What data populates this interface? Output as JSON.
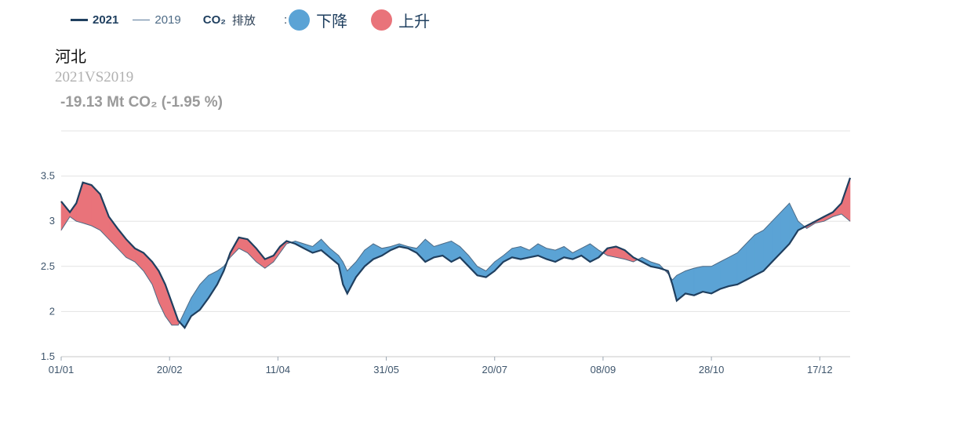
{
  "legend": {
    "line_2021": "2021",
    "line_2019": "2019",
    "co2": "CO₂",
    "emission": "排放",
    "colon": ":",
    "decrease": "下降",
    "increase": "上升"
  },
  "header": {
    "region": "河北",
    "comparison": "2021VS2019",
    "delta": "-19.13 Mt CO₂ (-1.95 %)"
  },
  "colors": {
    "line_2021": "#1f3f5f",
    "line_2019": "#4e6b86",
    "decrease": "#5ba3d5",
    "increase": "#e9737a",
    "grid": "#e3e3e3"
  },
  "chart_data": {
    "type": "area",
    "x_ticks": [
      "01/01",
      "20/02",
      "11/04",
      "31/05",
      "20/07",
      "08/09",
      "28/10",
      "17/12"
    ],
    "x_tick_days": [
      0,
      50,
      100,
      150,
      200,
      250,
      300,
      350
    ],
    "y_ticks": [
      "1.5",
      "2",
      "2.5",
      "3",
      "3.5"
    ],
    "ylim": [
      1.5,
      4.0
    ],
    "xlim": [
      0,
      364
    ],
    "grid": true,
    "series": [
      {
        "name": "2021",
        "points": [
          [
            0,
            3.22
          ],
          [
            4,
            3.1
          ],
          [
            7,
            3.2
          ],
          [
            10,
            3.43
          ],
          [
            14,
            3.4
          ],
          [
            18,
            3.3
          ],
          [
            22,
            3.05
          ],
          [
            26,
            2.92
          ],
          [
            30,
            2.8
          ],
          [
            34,
            2.7
          ],
          [
            38,
            2.65
          ],
          [
            42,
            2.55
          ],
          [
            45,
            2.45
          ],
          [
            48,
            2.3
          ],
          [
            51,
            2.1
          ],
          [
            54,
            1.9
          ],
          [
            57,
            1.82
          ],
          [
            60,
            1.95
          ],
          [
            64,
            2.02
          ],
          [
            68,
            2.15
          ],
          [
            72,
            2.3
          ],
          [
            75,
            2.45
          ],
          [
            78,
            2.65
          ],
          [
            82,
            2.82
          ],
          [
            86,
            2.8
          ],
          [
            90,
            2.7
          ],
          [
            94,
            2.58
          ],
          [
            98,
            2.62
          ],
          [
            101,
            2.72
          ],
          [
            104,
            2.78
          ],
          [
            108,
            2.75
          ],
          [
            112,
            2.7
          ],
          [
            116,
            2.65
          ],
          [
            120,
            2.68
          ],
          [
            124,
            2.6
          ],
          [
            128,
            2.52
          ],
          [
            130,
            2.3
          ],
          [
            132,
            2.2
          ],
          [
            136,
            2.38
          ],
          [
            140,
            2.5
          ],
          [
            144,
            2.58
          ],
          [
            148,
            2.62
          ],
          [
            152,
            2.68
          ],
          [
            156,
            2.72
          ],
          [
            160,
            2.7
          ],
          [
            164,
            2.65
          ],
          [
            168,
            2.55
          ],
          [
            172,
            2.6
          ],
          [
            176,
            2.62
          ],
          [
            180,
            2.55
          ],
          [
            184,
            2.6
          ],
          [
            188,
            2.5
          ],
          [
            192,
            2.4
          ],
          [
            196,
            2.38
          ],
          [
            200,
            2.45
          ],
          [
            204,
            2.55
          ],
          [
            208,
            2.6
          ],
          [
            212,
            2.58
          ],
          [
            216,
            2.6
          ],
          [
            220,
            2.62
          ],
          [
            224,
            2.58
          ],
          [
            228,
            2.55
          ],
          [
            232,
            2.6
          ],
          [
            236,
            2.58
          ],
          [
            240,
            2.62
          ],
          [
            244,
            2.55
          ],
          [
            248,
            2.6
          ],
          [
            252,
            2.7
          ],
          [
            256,
            2.72
          ],
          [
            260,
            2.68
          ],
          [
            264,
            2.6
          ],
          [
            268,
            2.55
          ],
          [
            272,
            2.5
          ],
          [
            276,
            2.48
          ],
          [
            280,
            2.45
          ],
          [
            282,
            2.3
          ],
          [
            284,
            2.12
          ],
          [
            288,
            2.2
          ],
          [
            292,
            2.18
          ],
          [
            296,
            2.22
          ],
          [
            300,
            2.2
          ],
          [
            304,
            2.25
          ],
          [
            308,
            2.28
          ],
          [
            312,
            2.3
          ],
          [
            316,
            2.35
          ],
          [
            320,
            2.4
          ],
          [
            324,
            2.45
          ],
          [
            328,
            2.55
          ],
          [
            332,
            2.65
          ],
          [
            336,
            2.75
          ],
          [
            340,
            2.9
          ],
          [
            344,
            2.95
          ],
          [
            348,
            3.0
          ],
          [
            352,
            3.05
          ],
          [
            356,
            3.1
          ],
          [
            360,
            3.2
          ],
          [
            364,
            3.48
          ]
        ]
      },
      {
        "name": "2019",
        "points": [
          [
            0,
            2.9
          ],
          [
            4,
            3.05
          ],
          [
            7,
            3.0
          ],
          [
            10,
            2.98
          ],
          [
            14,
            2.95
          ],
          [
            18,
            2.9
          ],
          [
            22,
            2.8
          ],
          [
            26,
            2.7
          ],
          [
            30,
            2.6
          ],
          [
            34,
            2.55
          ],
          [
            38,
            2.45
          ],
          [
            42,
            2.3
          ],
          [
            45,
            2.1
          ],
          [
            48,
            1.95
          ],
          [
            51,
            1.85
          ],
          [
            54,
            1.85
          ],
          [
            57,
            2.0
          ],
          [
            60,
            2.15
          ],
          [
            64,
            2.3
          ],
          [
            68,
            2.4
          ],
          [
            72,
            2.45
          ],
          [
            75,
            2.5
          ],
          [
            78,
            2.6
          ],
          [
            82,
            2.7
          ],
          [
            86,
            2.65
          ],
          [
            90,
            2.55
          ],
          [
            94,
            2.48
          ],
          [
            98,
            2.55
          ],
          [
            101,
            2.65
          ],
          [
            104,
            2.75
          ],
          [
            108,
            2.78
          ],
          [
            112,
            2.75
          ],
          [
            116,
            2.72
          ],
          [
            120,
            2.8
          ],
          [
            124,
            2.7
          ],
          [
            128,
            2.62
          ],
          [
            130,
            2.55
          ],
          [
            132,
            2.45
          ],
          [
            136,
            2.55
          ],
          [
            140,
            2.68
          ],
          [
            144,
            2.75
          ],
          [
            148,
            2.7
          ],
          [
            152,
            2.72
          ],
          [
            156,
            2.75
          ],
          [
            160,
            2.72
          ],
          [
            164,
            2.7
          ],
          [
            168,
            2.8
          ],
          [
            172,
            2.72
          ],
          [
            176,
            2.75
          ],
          [
            180,
            2.78
          ],
          [
            184,
            2.72
          ],
          [
            188,
            2.62
          ],
          [
            192,
            2.5
          ],
          [
            196,
            2.45
          ],
          [
            200,
            2.55
          ],
          [
            204,
            2.62
          ],
          [
            208,
            2.7
          ],
          [
            212,
            2.72
          ],
          [
            216,
            2.68
          ],
          [
            220,
            2.75
          ],
          [
            224,
            2.7
          ],
          [
            228,
            2.68
          ],
          [
            232,
            2.72
          ],
          [
            236,
            2.65
          ],
          [
            240,
            2.7
          ],
          [
            244,
            2.75
          ],
          [
            248,
            2.68
          ],
          [
            252,
            2.62
          ],
          [
            256,
            2.6
          ],
          [
            260,
            2.58
          ],
          [
            264,
            2.55
          ],
          [
            268,
            2.6
          ],
          [
            272,
            2.55
          ],
          [
            276,
            2.52
          ],
          [
            280,
            2.42
          ],
          [
            282,
            2.35
          ],
          [
            284,
            2.4
          ],
          [
            288,
            2.45
          ],
          [
            292,
            2.48
          ],
          [
            296,
            2.5
          ],
          [
            300,
            2.5
          ],
          [
            304,
            2.55
          ],
          [
            308,
            2.6
          ],
          [
            312,
            2.65
          ],
          [
            316,
            2.75
          ],
          [
            320,
            2.85
          ],
          [
            324,
            2.9
          ],
          [
            328,
            3.0
          ],
          [
            332,
            3.1
          ],
          [
            336,
            3.2
          ],
          [
            340,
            3.0
          ],
          [
            344,
            2.92
          ],
          [
            348,
            2.98
          ],
          [
            352,
            3.0
          ],
          [
            356,
            3.05
          ],
          [
            360,
            3.08
          ],
          [
            364,
            3.0
          ]
        ]
      }
    ]
  }
}
